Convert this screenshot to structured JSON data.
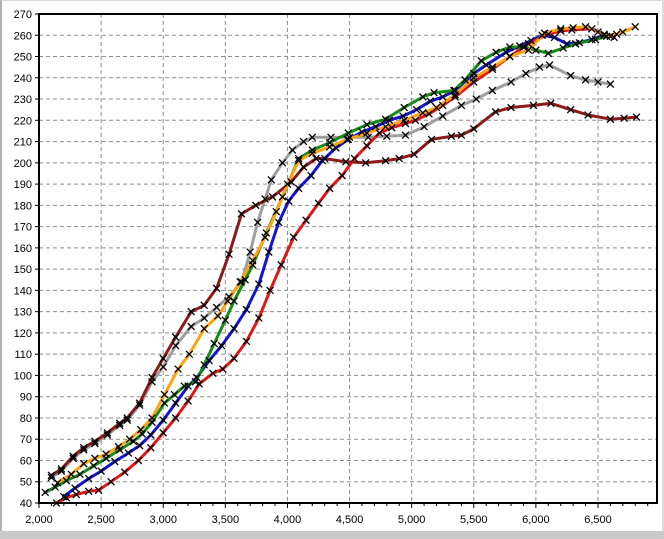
{
  "window": {
    "plot_background": "#ffffff",
    "axis_color": "#000000",
    "grid_color": "#8f8f8f",
    "marker_color": "#000000"
  },
  "chart_data": {
    "type": "line",
    "title": "",
    "xlabel": "",
    "ylabel": "",
    "legend": "none",
    "grid": "dashed",
    "marker": "x",
    "x_axis": {
      "min": 2000,
      "max": 6975,
      "major_step": 500,
      "minor_step": 100
    },
    "y_axis": {
      "min": 40,
      "max": 270,
      "major_step": 10
    },
    "x_ticks": [
      [
        2000,
        "2,000"
      ],
      [
        2500,
        "2,500"
      ],
      [
        3000,
        "3,000"
      ],
      [
        3500,
        "3,500"
      ],
      [
        4000,
        "4,000"
      ],
      [
        4500,
        "4,500"
      ],
      [
        5000,
        "5,000"
      ],
      [
        5500,
        "5,500"
      ],
      [
        6000,
        "6,000"
      ],
      [
        6500,
        "6,500"
      ]
    ],
    "y_ticks": [
      [
        40,
        "40"
      ],
      [
        50,
        "50"
      ],
      [
        60,
        "60"
      ],
      [
        70,
        "70"
      ],
      [
        80,
        "80"
      ],
      [
        90,
        "90"
      ],
      [
        100,
        "100"
      ],
      [
        110,
        "110"
      ],
      [
        120,
        "120"
      ],
      [
        130,
        "130"
      ],
      [
        140,
        "140"
      ],
      [
        150,
        "150"
      ],
      [
        160,
        "160"
      ],
      [
        170,
        "170"
      ],
      [
        180,
        "180"
      ],
      [
        190,
        "190"
      ],
      [
        200,
        "200"
      ],
      [
        210,
        "210"
      ],
      [
        220,
        "220"
      ],
      [
        230,
        "230"
      ],
      [
        240,
        "240"
      ],
      [
        250,
        "250"
      ],
      [
        260,
        "260"
      ],
      [
        270,
        "270"
      ]
    ],
    "series": [
      {
        "name": "gray",
        "color": "#9e9e9e",
        "points": [
          [
            2100,
            52
          ],
          [
            2180,
            55
          ],
          [
            2275,
            61
          ],
          [
            2360,
            65
          ],
          [
            2450,
            68
          ],
          [
            2550,
            72
          ],
          [
            2650,
            76.5
          ],
          [
            2710,
            79
          ],
          [
            2810,
            86
          ],
          [
            2910,
            97
          ],
          [
            3000,
            104
          ],
          [
            3100,
            114
          ],
          [
            3225,
            123
          ],
          [
            3330,
            127
          ],
          [
            3430,
            132
          ],
          [
            3530,
            137
          ],
          [
            3630,
            144
          ],
          [
            3700,
            158
          ],
          [
            3760,
            172
          ],
          [
            3820,
            183
          ],
          [
            3870,
            192
          ],
          [
            3960,
            200
          ],
          [
            4040,
            206
          ],
          [
            4130,
            210
          ],
          [
            4200,
            212
          ],
          [
            4350,
            212
          ],
          [
            4500,
            212
          ],
          [
            4650,
            212
          ],
          [
            4800,
            212.5
          ],
          [
            4950,
            213
          ],
          [
            5100,
            217
          ],
          [
            5250,
            222
          ],
          [
            5400,
            227
          ],
          [
            5520,
            230
          ],
          [
            5650,
            234
          ],
          [
            5800,
            238
          ],
          [
            5920,
            242
          ],
          [
            6030,
            245
          ],
          [
            6110,
            246
          ],
          [
            6280,
            241
          ],
          [
            6400,
            239
          ],
          [
            6500,
            238
          ],
          [
            6600,
            237
          ]
        ]
      },
      {
        "name": "dark-red",
        "color": "#8b1a1a",
        "points": [
          [
            2100,
            53
          ],
          [
            2180,
            56
          ],
          [
            2275,
            62
          ],
          [
            2360,
            66
          ],
          [
            2450,
            69
          ],
          [
            2550,
            73
          ],
          [
            2650,
            77.5
          ],
          [
            2710,
            80
          ],
          [
            2810,
            87
          ],
          [
            2910,
            99
          ],
          [
            3000,
            108
          ],
          [
            3100,
            118
          ],
          [
            3225,
            130
          ],
          [
            3330,
            133
          ],
          [
            3430,
            141
          ],
          [
            3530,
            157
          ],
          [
            3630,
            176
          ],
          [
            3745,
            180
          ],
          [
            3880,
            184
          ],
          [
            4030,
            191
          ],
          [
            4130,
            198
          ],
          [
            4230,
            202
          ],
          [
            4300,
            202
          ],
          [
            4470,
            200.5
          ],
          [
            4630,
            200
          ],
          [
            4790,
            201
          ],
          [
            4900,
            202
          ],
          [
            5020,
            204
          ],
          [
            5160,
            211
          ],
          [
            5320,
            212.5
          ],
          [
            5400,
            213
          ],
          [
            5500,
            216
          ],
          [
            5675,
            224
          ],
          [
            5800,
            226
          ],
          [
            5980,
            227
          ],
          [
            6120,
            228
          ],
          [
            6280,
            225
          ],
          [
            6420,
            222.5
          ],
          [
            6600,
            220.5
          ],
          [
            6710,
            221
          ],
          [
            6810,
            221.5
          ]
        ]
      },
      {
        "name": "blue",
        "color": "#1414d2",
        "points": [
          [
            2200,
            43
          ],
          [
            2290,
            47
          ],
          [
            2400,
            51.5
          ],
          [
            2500,
            55
          ],
          [
            2610,
            59.5
          ],
          [
            2720,
            63.5
          ],
          [
            2810,
            67
          ],
          [
            2900,
            72
          ],
          [
            3000,
            79
          ],
          [
            3100,
            87
          ],
          [
            3200,
            95
          ],
          [
            3270,
            99
          ],
          [
            3370,
            107
          ],
          [
            3470,
            114
          ],
          [
            3570,
            122
          ],
          [
            3670,
            131
          ],
          [
            3770,
            143
          ],
          [
            3850,
            158
          ],
          [
            3930,
            172
          ],
          [
            4010,
            182
          ],
          [
            4090,
            188
          ],
          [
            4190,
            194
          ],
          [
            4280,
            201
          ],
          [
            4390,
            207
          ],
          [
            4490,
            211
          ],
          [
            4600,
            214.5
          ],
          [
            4710,
            217
          ],
          [
            4820,
            220
          ],
          [
            4930,
            222
          ],
          [
            5040,
            225
          ],
          [
            5150,
            229
          ],
          [
            5250,
            231
          ],
          [
            5350,
            234
          ],
          [
            5500,
            242
          ],
          [
            5600,
            246
          ],
          [
            5760,
            252
          ],
          [
            5870,
            255
          ],
          [
            5960,
            257.5
          ],
          [
            6050,
            260
          ],
          [
            6150,
            259
          ],
          [
            6250,
            256
          ],
          [
            6350,
            256.5
          ],
          [
            6450,
            258
          ],
          [
            6550,
            260
          ]
        ]
      },
      {
        "name": "red",
        "color": "#e11818",
        "points": [
          [
            2140,
            40
          ],
          [
            2220,
            42.5
          ],
          [
            2300,
            44
          ],
          [
            2400,
            45.5
          ],
          [
            2480,
            46
          ],
          [
            2580,
            50
          ],
          [
            2690,
            54.5
          ],
          [
            2800,
            60
          ],
          [
            2900,
            66
          ],
          [
            3000,
            73
          ],
          [
            3100,
            80
          ],
          [
            3200,
            88
          ],
          [
            3290,
            96
          ],
          [
            3400,
            101
          ],
          [
            3480,
            103
          ],
          [
            3570,
            108
          ],
          [
            3670,
            116
          ],
          [
            3770,
            127
          ],
          [
            3860,
            140
          ],
          [
            3950,
            152
          ],
          [
            4050,
            165
          ],
          [
            4150,
            173
          ],
          [
            4250,
            181
          ],
          [
            4340,
            188
          ],
          [
            4440,
            194
          ],
          [
            4540,
            202
          ],
          [
            4640,
            208
          ],
          [
            4740,
            214
          ],
          [
            4840,
            216.5
          ],
          [
            4950,
            218.5
          ],
          [
            5030,
            220
          ],
          [
            5140,
            223
          ],
          [
            5250,
            227
          ],
          [
            5350,
            231
          ],
          [
            5500,
            238
          ],
          [
            5650,
            244
          ],
          [
            5790,
            250
          ],
          [
            5940,
            256
          ],
          [
            6100,
            260.5
          ],
          [
            6200,
            262
          ],
          [
            6290,
            262.5
          ],
          [
            6450,
            263
          ],
          [
            6550,
            260.5
          ],
          [
            6630,
            259
          ]
        ]
      },
      {
        "name": "green",
        "color": "#178a17",
        "points": [
          [
            2050,
            45
          ],
          [
            2130,
            47.5
          ],
          [
            2220,
            50.5
          ],
          [
            2330,
            53.5
          ],
          [
            2440,
            57.5
          ],
          [
            2540,
            61
          ],
          [
            2650,
            65
          ],
          [
            2760,
            69
          ],
          [
            2830,
            72.5
          ],
          [
            2910,
            78
          ],
          [
            3010,
            87
          ],
          [
            3090,
            91
          ],
          [
            3170,
            95
          ],
          [
            3260,
            97
          ],
          [
            3330,
            105
          ],
          [
            3410,
            115
          ],
          [
            3500,
            126
          ],
          [
            3570,
            135
          ],
          [
            3660,
            145
          ],
          [
            3720,
            152
          ],
          [
            3830,
            167
          ],
          [
            3960,
            184
          ],
          [
            4090,
            202
          ],
          [
            4200,
            206
          ],
          [
            4340,
            209.5
          ],
          [
            4490,
            214
          ],
          [
            4640,
            218
          ],
          [
            4790,
            220.5
          ],
          [
            4940,
            226
          ],
          [
            5090,
            231
          ],
          [
            5180,
            233
          ],
          [
            5340,
            234
          ],
          [
            5430,
            239
          ],
          [
            5560,
            248
          ],
          [
            5680,
            252
          ],
          [
            5790,
            254.5
          ],
          [
            5900,
            254.5
          ],
          [
            6000,
            253
          ],
          [
            6100,
            251.5
          ],
          [
            6220,
            254
          ],
          [
            6320,
            256
          ],
          [
            6480,
            258
          ],
          [
            6570,
            259.5
          ],
          [
            6650,
            260.5
          ]
        ]
      },
      {
        "name": "orange",
        "color": "#ffa30f",
        "points": [
          [
            2150,
            49.5
          ],
          [
            2260,
            53.5
          ],
          [
            2360,
            58.5
          ],
          [
            2450,
            61
          ],
          [
            2540,
            63
          ],
          [
            2640,
            66.5
          ],
          [
            2730,
            70
          ],
          [
            2820,
            74.5
          ],
          [
            2910,
            80
          ],
          [
            3010,
            91
          ],
          [
            3120,
            103
          ],
          [
            3210,
            110
          ],
          [
            3330,
            122
          ],
          [
            3440,
            128
          ],
          [
            3520,
            135
          ],
          [
            3620,
            144
          ],
          [
            3720,
            154
          ],
          [
            3820,
            165
          ],
          [
            3910,
            177
          ],
          [
            4000,
            190
          ],
          [
            4090,
            201
          ],
          [
            4200,
            204.5
          ],
          [
            4340,
            207.5
          ],
          [
            4480,
            211
          ],
          [
            4640,
            214
          ],
          [
            4790,
            217
          ],
          [
            4940,
            220
          ],
          [
            5090,
            223.5
          ],
          [
            5200,
            226
          ],
          [
            5350,
            232
          ],
          [
            5500,
            240
          ],
          [
            5650,
            245
          ],
          [
            5790,
            250
          ],
          [
            5940,
            253
          ],
          [
            6070,
            261
          ],
          [
            6200,
            263
          ],
          [
            6300,
            263.5
          ],
          [
            6400,
            264
          ],
          [
            6500,
            261.5
          ],
          [
            6600,
            259.5
          ],
          [
            6700,
            261.5
          ],
          [
            6800,
            264
          ]
        ]
      }
    ]
  }
}
